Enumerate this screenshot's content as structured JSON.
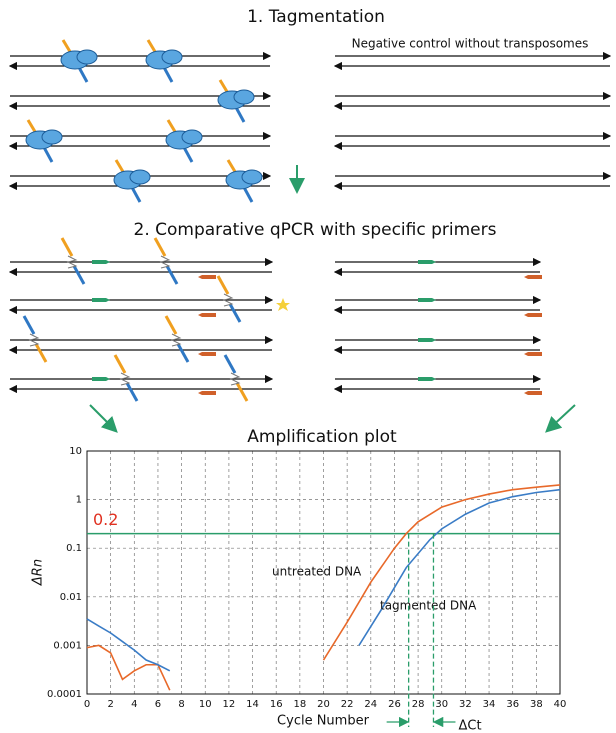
{
  "section1_title": "1. Tagmentation",
  "negative_control_label": "Negative control without transposomes",
  "section2_title": "2. Comparative qPCR with specific primers",
  "chart_data": {
    "type": "line",
    "title": "Amplification plot",
    "xlabel": "Cycle Number",
    "ylabel": "ΔRn",
    "xlim": [
      0,
      40
    ],
    "xticks": [
      0,
      2,
      4,
      6,
      8,
      10,
      12,
      14,
      16,
      18,
      20,
      22,
      24,
      26,
      28,
      30,
      32,
      34,
      36,
      38,
      40
    ],
    "ylim": [
      0.0001,
      10
    ],
    "yticks": [
      0.0001,
      0.001,
      0.01,
      0.1,
      1,
      10
    ],
    "log_y": true,
    "grid": true,
    "threshold": 0.2,
    "threshold_color": "#2a9d6a",
    "series": [
      {
        "name": "untreated DNA",
        "color": "#e8692a",
        "x": [
          0,
          1,
          2,
          3,
          4,
          5,
          6,
          7,
          13,
          20,
          22,
          24,
          26,
          27,
          28,
          30,
          32,
          34,
          36,
          38,
          40
        ],
        "values": [
          0.0009,
          0.001,
          0.0007,
          0.0002,
          0.0003,
          0.0004,
          0.0004,
          0.00012,
          null,
          0.0005,
          0.003,
          0.02,
          0.1,
          0.2,
          0.35,
          0.7,
          1.0,
          1.3,
          1.6,
          1.8,
          2.0
        ]
      },
      {
        "name": "tagmented DNA",
        "color": "#3a7cc6",
        "x": [
          0,
          1,
          2,
          3,
          4,
          5,
          6,
          7,
          15,
          23,
          25,
          27,
          29,
          30,
          32,
          34,
          36,
          38,
          40
        ],
        "values": [
          0.0035,
          0.0025,
          0.0018,
          0.0012,
          0.0008,
          0.0005,
          0.0004,
          0.0003,
          null,
          0.001,
          0.006,
          0.04,
          0.15,
          0.25,
          0.5,
          0.85,
          1.15,
          1.4,
          1.6
        ]
      }
    ],
    "ct_marks": [
      27.2,
      29.3
    ],
    "delta_ct_label": "ΔCt"
  }
}
